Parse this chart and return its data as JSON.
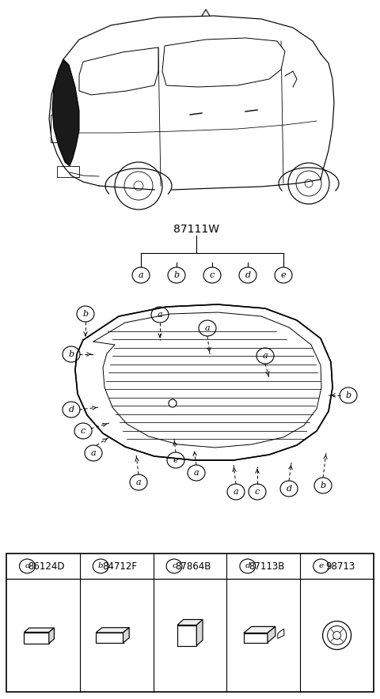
{
  "title": "87111W",
  "bg_color": "#ffffff",
  "parts": [
    {
      "label": "a",
      "code": "86124D"
    },
    {
      "label": "b",
      "code": "84712F"
    },
    {
      "label": "c",
      "code": "87864B"
    },
    {
      "label": "d",
      "code": "87113B"
    },
    {
      "label": "e",
      "code": "98713"
    }
  ],
  "car_region": [
    0,
    0,
    480,
    275
  ],
  "legend_region": [
    0,
    275,
    480,
    370
  ],
  "glass_region": [
    0,
    360,
    480,
    670
  ],
  "table_region": [
    0,
    690,
    480,
    884
  ]
}
